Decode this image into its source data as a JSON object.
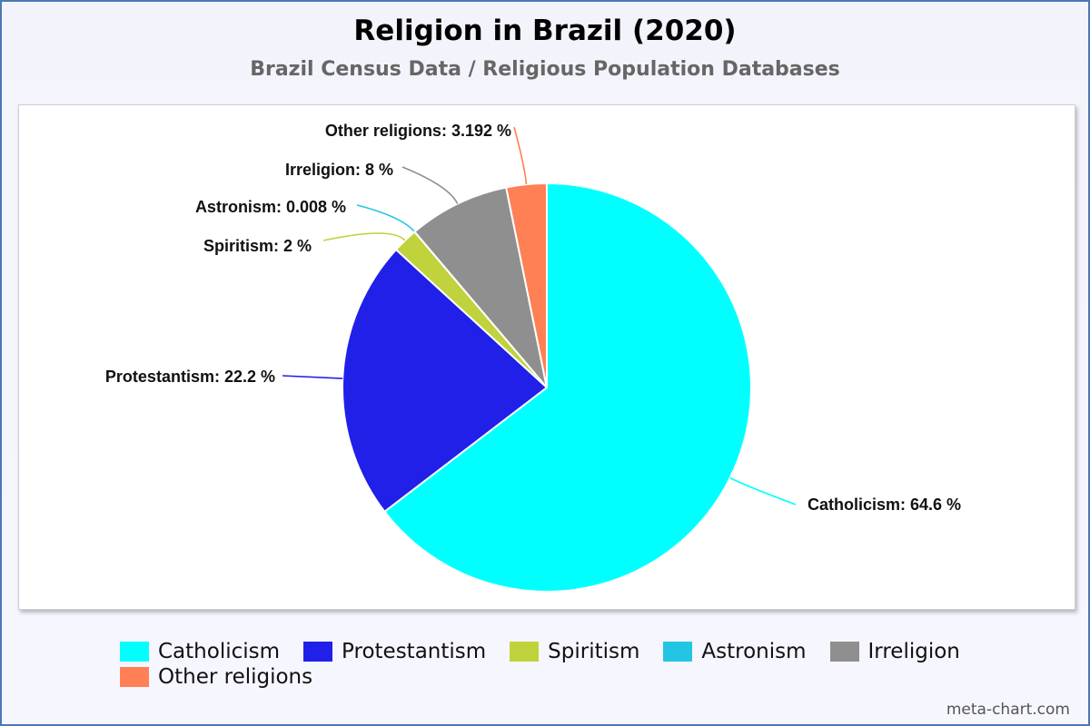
{
  "title": "Religion in Brazil (2020)",
  "subtitle": "Brazil Census Data / Religious Population Databases",
  "watermark": "meta-chart.com",
  "chart_data": {
    "type": "pie",
    "title": "Religion in Brazil (2020)",
    "subtitle": "Brazil Census Data / Religious Population Databases",
    "legend_position": "bottom",
    "slices": [
      {
        "name": "Catholicism",
        "value": 64.6,
        "label": "Catholicism: 64.6 %",
        "color": "#00ffff"
      },
      {
        "name": "Protestantism",
        "value": 22.2,
        "label": "Protestantism: 22.2 %",
        "color": "#2020e8"
      },
      {
        "name": "Spiritism",
        "value": 2,
        "label": "Spiritism: 2 %",
        "color": "#c0d23c"
      },
      {
        "name": "Astronism",
        "value": 0.008,
        "label": "Astronism: 0.008 %",
        "color": "#22c6e4"
      },
      {
        "name": "Irreligion",
        "value": 8,
        "label": "Irreligion: 8 %",
        "color": "#8f8f8f"
      },
      {
        "name": "Other religions",
        "value": 3.192,
        "label": "Other religions: 3.192 %",
        "color": "#ff8055"
      }
    ]
  }
}
